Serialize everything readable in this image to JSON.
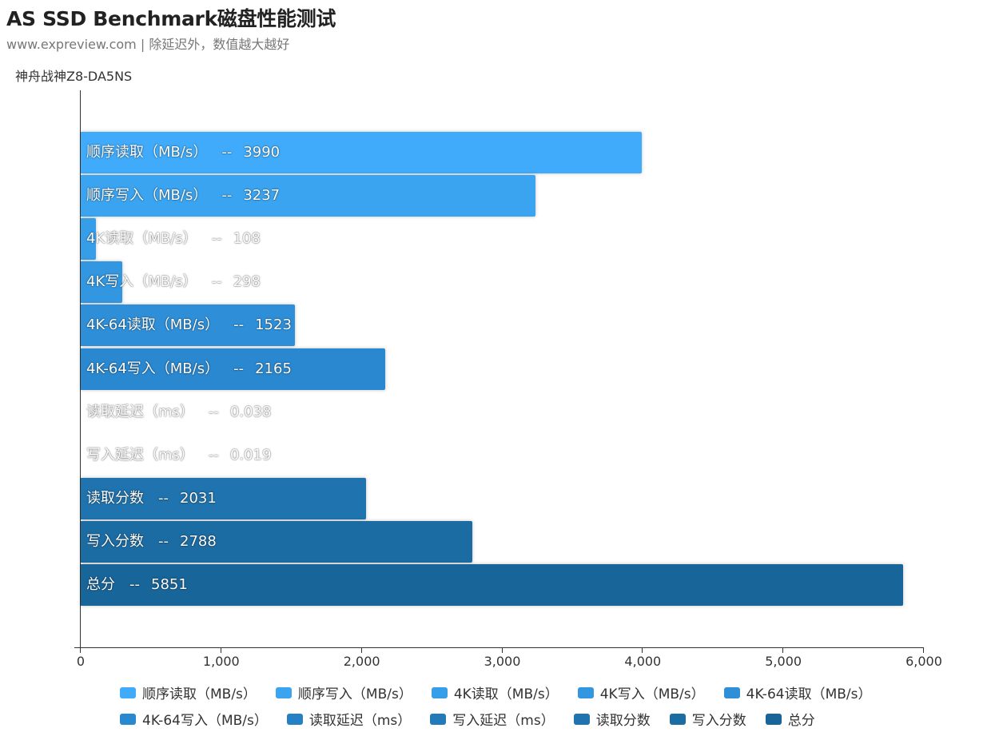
{
  "header": {
    "title": "AS SSD Benchmark磁盘性能测试",
    "subtitle": "www.expreview.com | 除延迟外，数值越大越好",
    "device": "神舟战神Z8-DA5NS"
  },
  "chart_data": {
    "type": "bar",
    "orientation": "horizontal",
    "title": "AS SSD Benchmark磁盘性能测试",
    "subtitle": "www.expreview.com | 除延迟外，数值越大越好",
    "ylabel": "神舟战神Z8-DA5NS",
    "xlabel": "",
    "xlim": [
      0,
      6000
    ],
    "grid": false,
    "legend_position": "bottom",
    "x_ticks": [
      "0",
      "1,000",
      "2,000",
      "3,000",
      "4,000",
      "5,000",
      "6,000"
    ],
    "categories": [
      "顺序读取（MB/s）",
      "顺序写入（MB/s）",
      "4K读取（MB/s）",
      "4K写入（MB/s）",
      "4K-64读取（MB/s）",
      "4K-64写入（MB/s）",
      "读取延迟（ms）",
      "写入延迟（ms）",
      "读取分数",
      "写入分数",
      "总分"
    ],
    "series": [
      {
        "name": "顺序读取（MB/s）",
        "value": 3990,
        "label": "3990",
        "color": "#3fabfa"
      },
      {
        "name": "顺序写入（MB/s）",
        "value": 3237,
        "label": "3237",
        "color": "#3aa4f0"
      },
      {
        "name": "4K读取（MB/s）",
        "value": 108,
        "label": "108",
        "color": "#369de8"
      },
      {
        "name": "4K写入（MB/s）",
        "value": 298,
        "label": "298",
        "color": "#3296e0"
      },
      {
        "name": "4K-64读取（MB/s）",
        "value": 1523,
        "label": "1523",
        "color": "#2e8fd8"
      },
      {
        "name": "4K-64写入（MB/s）",
        "value": 2165,
        "label": "2165",
        "color": "#2a88d0"
      },
      {
        "name": "读取延迟（ms）",
        "value": 0.038,
        "label": "0.038",
        "color": "#2681c4"
      },
      {
        "name": "写入延迟（ms）",
        "value": 0.019,
        "label": "0.019",
        "color": "#227ab8"
      },
      {
        "name": "读取分数",
        "value": 2031,
        "label": "2031",
        "color": "#1f73ae"
      },
      {
        "name": "写入分数",
        "value": 2788,
        "label": "2788",
        "color": "#1c6ca4"
      },
      {
        "name": "总分",
        "value": 5851,
        "label": "5851",
        "color": "#18659a"
      }
    ]
  },
  "bars": [
    {
      "name": "顺序读取（MB/s）",
      "sep": "--",
      "value": "3990"
    },
    {
      "name": "顺序写入（MB/s）",
      "sep": "--",
      "value": "3237"
    },
    {
      "name": "4K读取（MB/s）",
      "sep": "--",
      "value": "108"
    },
    {
      "name": "4K写入（MB/s）",
      "sep": "--",
      "value": "298"
    },
    {
      "name": "4K-64读取（MB/s）",
      "sep": "--",
      "value": "1523"
    },
    {
      "name": "4K-64写入（MB/s）",
      "sep": "--",
      "value": "2165"
    },
    {
      "name": "读取延迟（ms）",
      "sep": "--",
      "value": "0.038"
    },
    {
      "name": "写入延迟（ms）",
      "sep": "--",
      "value": "0.019"
    },
    {
      "name": "读取分数",
      "sep": "--",
      "value": "2031"
    },
    {
      "name": "写入分数",
      "sep": "--",
      "value": "2788"
    },
    {
      "name": "总分",
      "sep": "--",
      "value": "5851"
    }
  ],
  "axis": {
    "ticks": [
      "0",
      "1,000",
      "2,000",
      "3,000",
      "4,000",
      "5,000",
      "6,000"
    ]
  },
  "legend": {
    "items": [
      "顺序读取（MB/s）",
      "顺序写入（MB/s）",
      "4K读取（MB/s）",
      "4K写入（MB/s）",
      "4K-64读取（MB/s）",
      "4K-64写入（MB/s）",
      "读取延迟（ms）",
      "写入延迟（ms）",
      "读取分数",
      "写入分数",
      "总分"
    ]
  }
}
